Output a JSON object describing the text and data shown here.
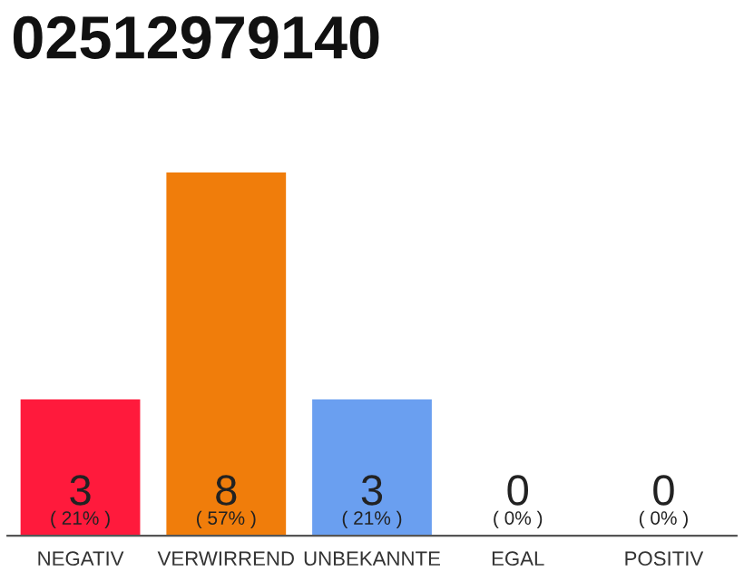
{
  "chart_data": {
    "type": "bar",
    "title": "02512979140",
    "categories": [
      "NEGATIV",
      "VERWIRREND",
      "UNBEKANNTE",
      "EGAL",
      "POSITIV"
    ],
    "values": [
      3,
      8,
      3,
      0,
      0
    ],
    "colors": [
      "#ff1a3c",
      "#f07d0b",
      "#6a9ff0",
      "#999999",
      "#999999"
    ],
    "value_labels": [
      "3\n( 21% )",
      "8\n( 57% )",
      "3\n( 21% )",
      "0\n( 0% )",
      "0\n( 0% )"
    ],
    "grid": false,
    "legend": false
  }
}
